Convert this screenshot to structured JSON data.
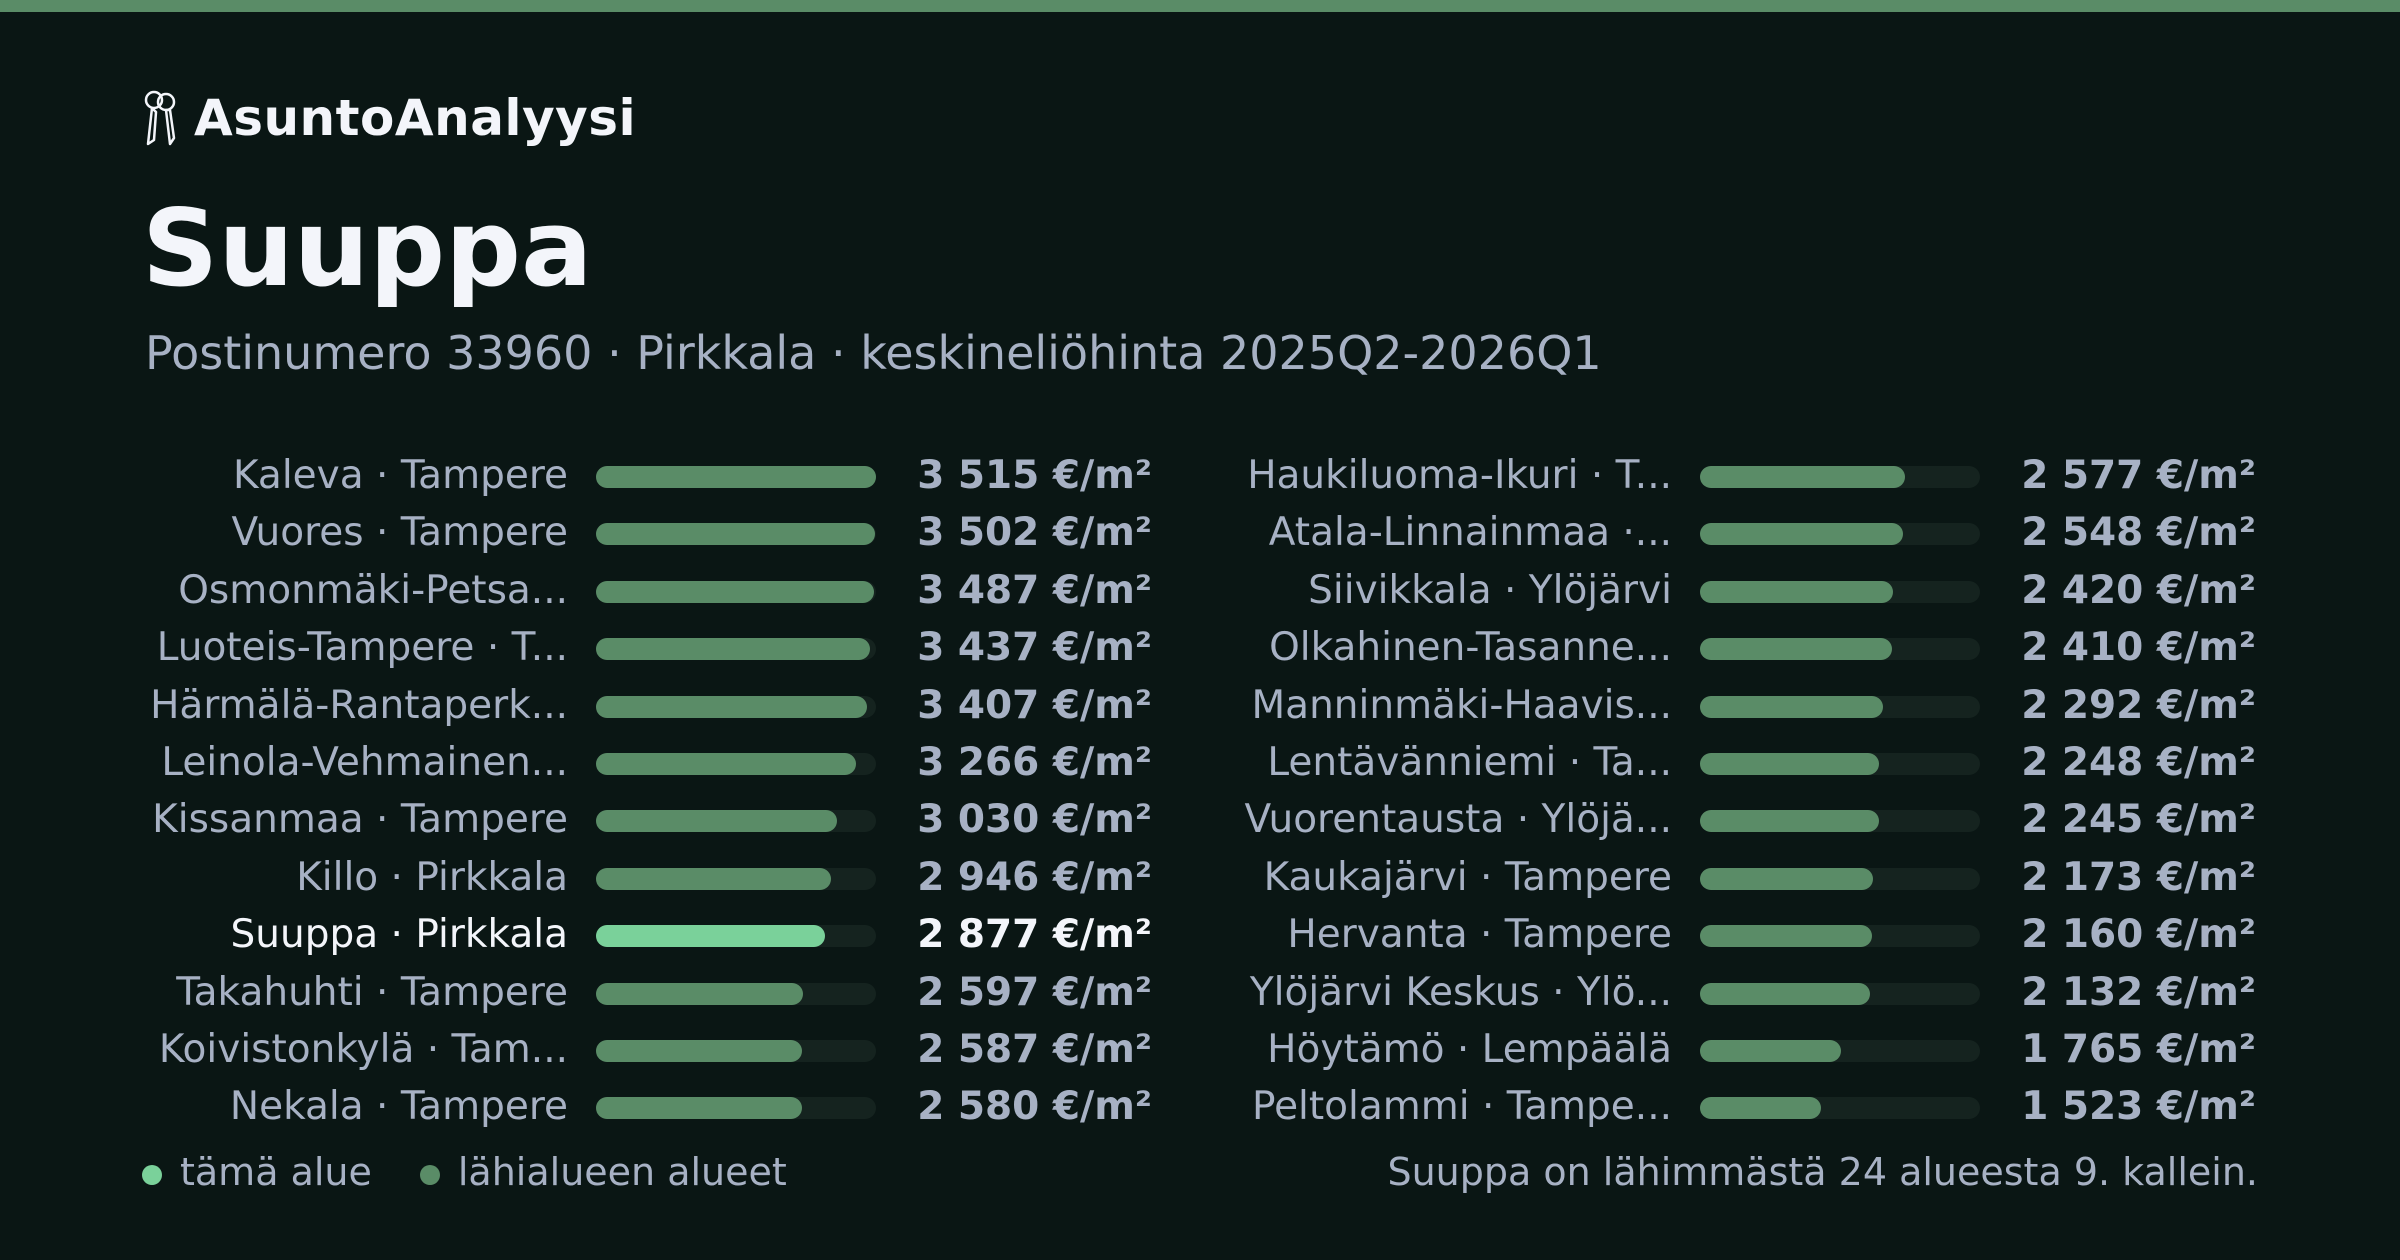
{
  "brand": {
    "name": "AsuntoAnalyysi",
    "icon": "keys-icon"
  },
  "header": {
    "title": "Suuppa",
    "subtitle": "Postinumero 33960 · Pirkkala · keskineliöhinta 2025Q2-2026Q1"
  },
  "colors": {
    "accent_bar": "#5a8c67",
    "highlight": "#7ad19a",
    "background": "#0a1614",
    "track": "#15231f"
  },
  "chart_data": {
    "type": "bar",
    "orientation": "horizontal",
    "unit": "€/m²",
    "xlim": [
      0,
      3515
    ],
    "highlight_index": 8,
    "categories": [
      "Kaleva · Tampere",
      "Vuores · Tampere",
      "Osmonmäki-Petsa...",
      "Luoteis-Tampere · T...",
      "Härmälä-Rantaperk...",
      "Leinola-Vehmainen...",
      "Kissanmaa · Tampere",
      "Killo · Pirkkala",
      "Suuppa · Pirkkala",
      "Takahuhti · Tampere",
      "Koivistonkylä · Tam...",
      "Nekala · Tampere",
      "Haukiluoma-Ikuri · T...",
      "Atala-Linnainmaa ·...",
      "Siivikkala · Ylöjärvi",
      "Olkahinen-Tasanne...",
      "Manninmäki-Haavis...",
      "Lentävänniemi · Ta...",
      "Vuorentausta · Ylöjä...",
      "Kaukajärvi · Tampere",
      "Hervanta · Tampere",
      "Ylöjärvi Keskus · Ylö...",
      "Höytämö · Lempäälä",
      "Peltolammi · Tampe..."
    ],
    "values": [
      3515,
      3502,
      3487,
      3437,
      3407,
      3266,
      3030,
      2946,
      2877,
      2597,
      2587,
      2580,
      2577,
      2548,
      2420,
      2410,
      2292,
      2248,
      2245,
      2173,
      2160,
      2132,
      1765,
      1523
    ],
    "value_labels": [
      "3 515 €/m²",
      "3 502 €/m²",
      "3 487 €/m²",
      "3 437 €/m²",
      "3 407 €/m²",
      "3 266 €/m²",
      "3 030 €/m²",
      "2 946 €/m²",
      "2 877 €/m²",
      "2 597 €/m²",
      "2 587 €/m²",
      "2 580 €/m²",
      "2 577 €/m²",
      "2 548 €/m²",
      "2 420 €/m²",
      "2 410 €/m²",
      "2 292 €/m²",
      "2 248 €/m²",
      "2 245 €/m²",
      "2 173 €/m²",
      "2 160 €/m²",
      "2 132 €/m²",
      "1 765 €/m²",
      "1 523 €/m²"
    ]
  },
  "legend": {
    "this_area": "tämä alue",
    "nearby": "lähialueen alueet"
  },
  "footnote": "Suuppa on lähimmästä 24 alueesta 9. kallein."
}
